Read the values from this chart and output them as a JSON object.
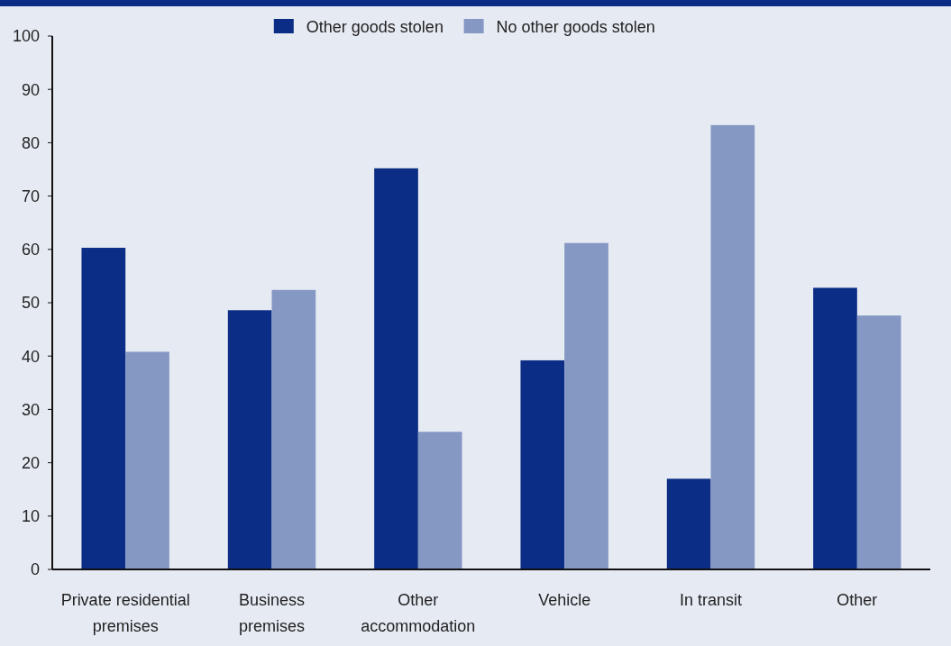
{
  "chart_data": {
    "type": "bar",
    "categories": [
      "Private residential premises",
      "Business premises",
      "Other accommodation",
      "Vehicle",
      "In transit",
      "Other"
    ],
    "series": [
      {
        "name": "Other goods stolen",
        "color": "#0b2d85",
        "values": [
          60.3,
          48.6,
          75.2,
          39.2,
          17.0,
          52.8
        ]
      },
      {
        "name": "No other goods stolen",
        "color": "#8498c3",
        "values": [
          40.8,
          52.4,
          25.8,
          61.2,
          83.3,
          47.6
        ]
      }
    ],
    "ylim": [
      0,
      100
    ],
    "yticks": [
      0,
      10,
      20,
      30,
      40,
      50,
      60,
      70,
      80,
      90,
      100
    ],
    "grid": false,
    "legend": "top"
  }
}
